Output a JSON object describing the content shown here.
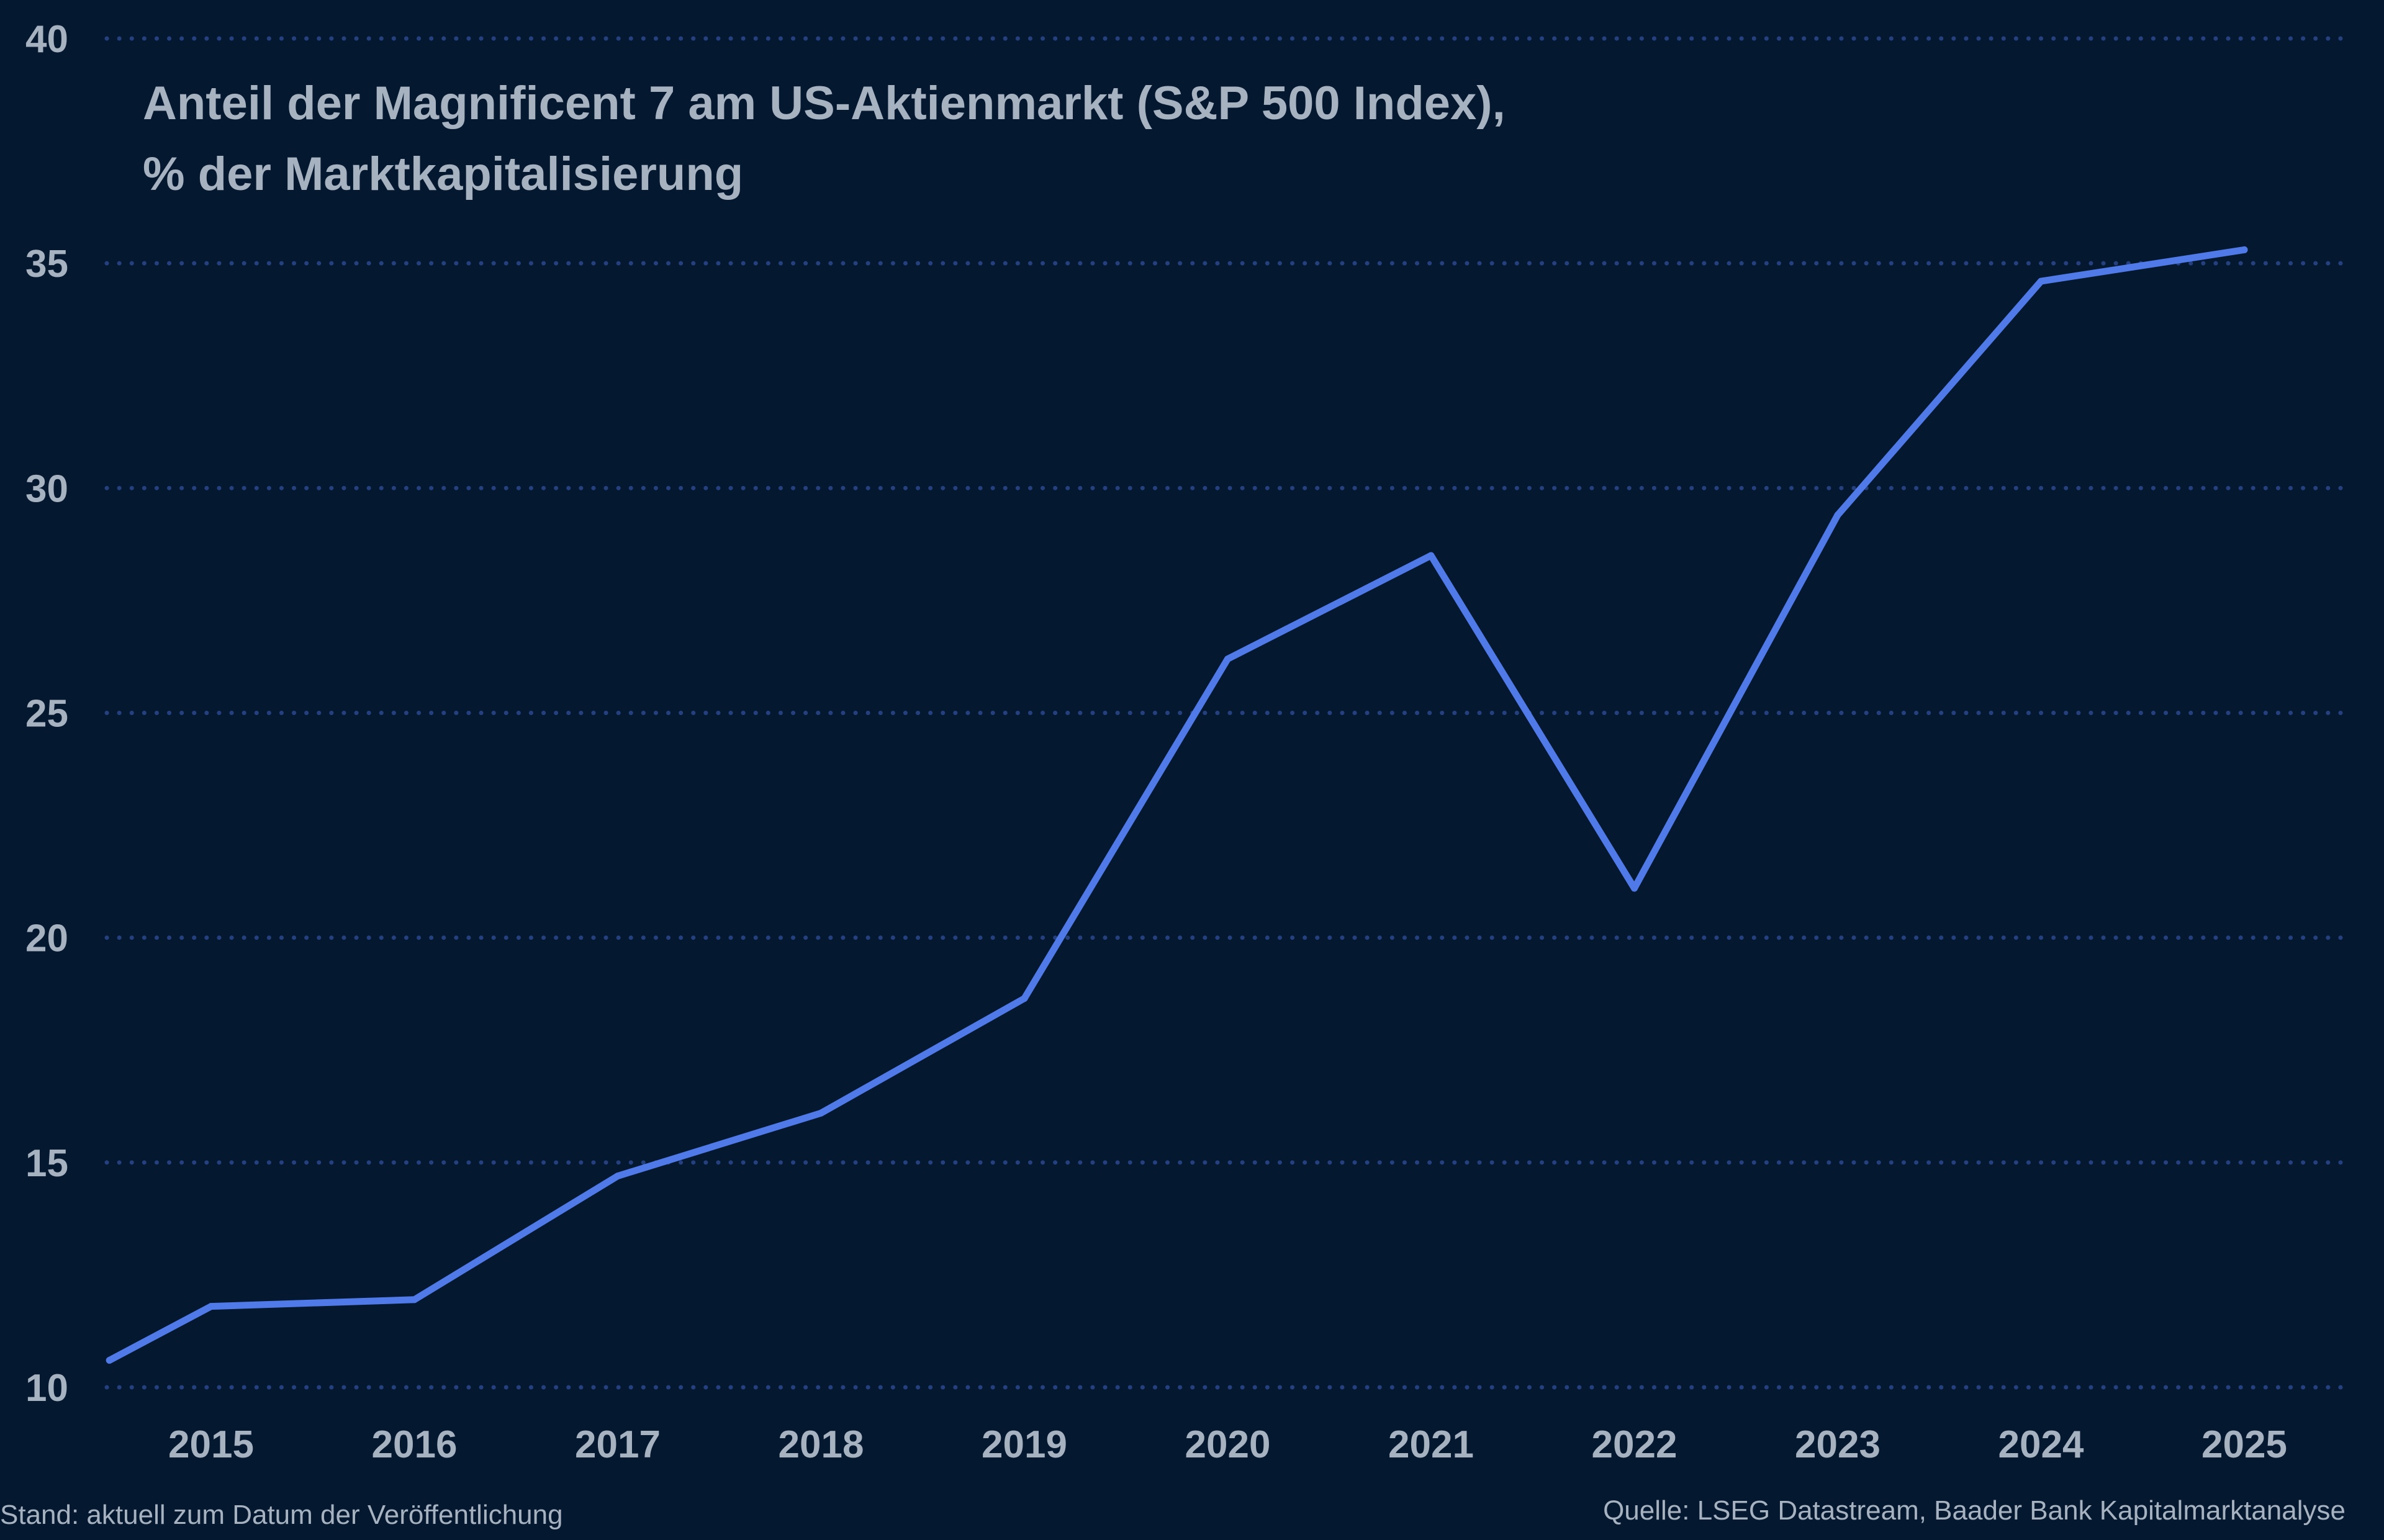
{
  "chart_data": {
    "type": "line",
    "title_lines": [
      "Anteil der Magnificent 7 am US-Aktienmarkt (S&P 500 Index),",
      "% der Marktkapitalisierung"
    ],
    "xlabel": "",
    "ylabel": "",
    "x_tick_labels": [
      "2015",
      "2016",
      "2017",
      "2018",
      "2019",
      "2020",
      "2021",
      "2022",
      "2023",
      "2024",
      "2025"
    ],
    "y_tick_labels": [
      "10",
      "15",
      "20",
      "25",
      "30",
      "35",
      "40"
    ],
    "ylim": [
      10,
      40
    ],
    "xlim": [
      2014.5,
      2025.5
    ],
    "grid": "horizontal dotted",
    "colors": {
      "background": "#041830",
      "line": "#4f7ae8",
      "grid": "#24407e",
      "text": "#a7b2c0"
    },
    "series": [
      {
        "x": [
          2014.5,
          2015,
          2016,
          2017,
          2018,
          2019,
          2020,
          2021,
          2022,
          2023,
          2024,
          2025
        ],
        "values": [
          10.6,
          11.8,
          11.95,
          14.7,
          16.1,
          18.65,
          26.2,
          28.5,
          21.1,
          29.4,
          34.6,
          35.3
        ]
      }
    ]
  },
  "footer": {
    "left": "Stand: aktuell zum Datum der Veröffentlichung",
    "right": "Quelle: LSEG Datastream, Baader Bank Kapitalmarktanalyse"
  }
}
